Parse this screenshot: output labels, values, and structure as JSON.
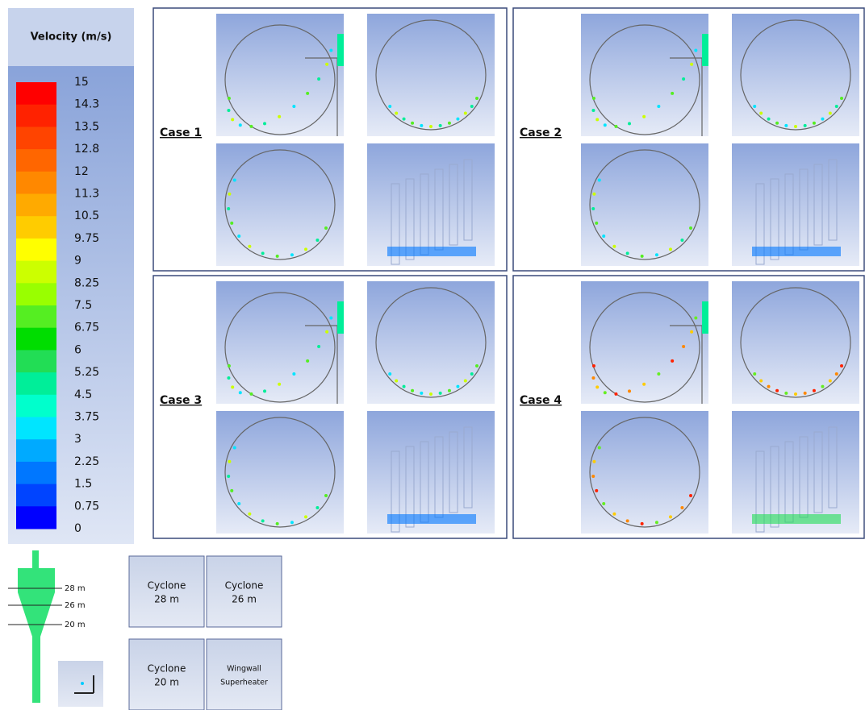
{
  "legend": {
    "title": "Velocity (m/s)",
    "ticks": [
      15,
      14.3,
      13.5,
      12.8,
      12,
      11.3,
      10.5,
      9.75,
      9,
      8.25,
      7.5,
      6.75,
      6,
      5.25,
      4.5,
      3.75,
      3,
      2.25,
      1.5,
      0.75,
      0
    ],
    "colors": [
      "#ff0000",
      "#ff2200",
      "#ff4400",
      "#ff6600",
      "#ff8800",
      "#ffaa00",
      "#ffcc00",
      "#ffff00",
      "#ccff00",
      "#99ff00",
      "#55ee22",
      "#00dd00",
      "#22dd55",
      "#00ee99",
      "#00ffcc",
      "#00e5ff",
      "#00aaff",
      "#0077ff",
      "#0044ff",
      "#0000ff"
    ]
  },
  "cases": [
    "Case 1",
    "Case 2",
    "Case 3",
    "Case 4"
  ],
  "diagram": {
    "levels": [
      "28 m",
      "26 m",
      "20 m"
    ]
  },
  "keys": [
    [
      "Cyclone",
      "28 m"
    ],
    [
      "Cyclone",
      "26 m"
    ],
    [
      "Cyclone",
      "20 m"
    ],
    [
      "Wingwall",
      "Superheater"
    ]
  ]
}
